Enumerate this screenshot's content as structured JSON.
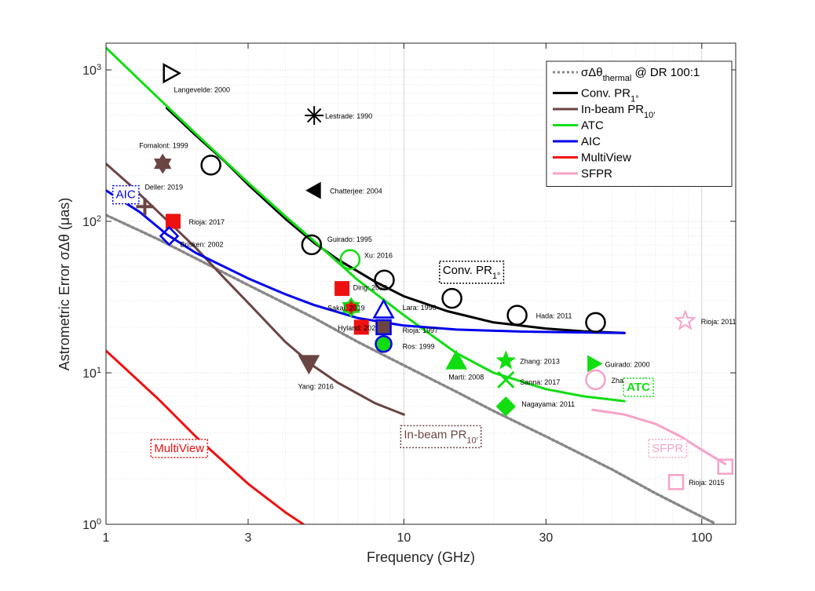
{
  "chart_data": {
    "type": "line",
    "xlabel": "Frequency (GHz)",
    "ylabel": "Astrometric Error σΔθ (μas)",
    "x_scale": "log",
    "y_scale": "log",
    "xlim": [
      1,
      130
    ],
    "ylim": [
      1,
      1500
    ],
    "grid": true,
    "minor_grid": true,
    "legend_position": "top-right",
    "x_ticks": [
      {
        "value": 1,
        "label": "1"
      },
      {
        "value": 3,
        "label": "3"
      },
      {
        "value": 10,
        "label": "10"
      },
      {
        "value": 30,
        "label": "30"
      },
      {
        "value": 100,
        "label": "100"
      }
    ],
    "y_ticks": [
      {
        "value": 1,
        "base": "10",
        "exp": "0"
      },
      {
        "value": 10,
        "base": "10",
        "exp": "1"
      },
      {
        "value": 100,
        "base": "10",
        "exp": "2"
      },
      {
        "value": 1000,
        "base": "10",
        "exp": "3"
      }
    ],
    "series": [
      {
        "key": "thermal",
        "legend": "σΔθ",
        "legend_sub": "thermal",
        "legend_suffix": " @ DR 100:1",
        "color": "#888888",
        "dash": "3,3",
        "points": [
          [
            1,
            110
          ],
          [
            1.5,
            76
          ],
          [
            2,
            57
          ],
          [
            3,
            38
          ],
          [
            5,
            23
          ],
          [
            7,
            16
          ],
          [
            10,
            11.2
          ],
          [
            15,
            7.5
          ],
          [
            20,
            5.6
          ],
          [
            30,
            3.8
          ],
          [
            50,
            2.3
          ],
          [
            70,
            1.6
          ],
          [
            100,
            1.12
          ],
          [
            110,
            1.02
          ]
        ]
      },
      {
        "key": "conv",
        "legend": "Conv. PR",
        "legend_sub": "1°",
        "color": "#000000",
        "points": [
          [
            1.6,
            560
          ],
          [
            2,
            370
          ],
          [
            2.5,
            250
          ],
          [
            3,
            175
          ],
          [
            4,
            104
          ],
          [
            5,
            72
          ],
          [
            6,
            56
          ],
          [
            8,
            40
          ],
          [
            10,
            32
          ],
          [
            14,
            25.5
          ],
          [
            20,
            21.5
          ],
          [
            30,
            19.6
          ],
          [
            40,
            18.8
          ],
          [
            55,
            18.3
          ]
        ]
      },
      {
        "key": "inbeam",
        "legend": "In-beam PR",
        "legend_sub": "10′",
        "color": "#6b4543",
        "points": [
          [
            1,
            240
          ],
          [
            1.2,
            175
          ],
          [
            1.5,
            115
          ],
          [
            2,
            67
          ],
          [
            2.5,
            42
          ],
          [
            3,
            29
          ],
          [
            4,
            16
          ],
          [
            5,
            11
          ],
          [
            6,
            8.6
          ],
          [
            8,
            6.3
          ],
          [
            10,
            5.3
          ]
        ]
      },
      {
        "key": "atc",
        "legend": "ATC",
        "color": "#11dd11",
        "points": [
          [
            1,
            1400
          ],
          [
            1.5,
            650
          ],
          [
            2,
            380
          ],
          [
            3,
            180
          ],
          [
            4,
            108
          ],
          [
            5,
            74
          ],
          [
            7,
            41
          ],
          [
            10,
            24
          ],
          [
            15,
            13.5
          ],
          [
            20,
            10
          ],
          [
            30,
            7.8
          ],
          [
            40,
            7
          ],
          [
            55,
            6.5
          ]
        ]
      },
      {
        "key": "aic",
        "legend": "AIC",
        "color": "#0000ee",
        "points": [
          [
            1,
            160
          ],
          [
            1.3,
            115
          ],
          [
            1.6,
            82
          ],
          [
            2,
            62
          ],
          [
            3,
            42
          ],
          [
            4,
            33
          ],
          [
            5,
            28
          ],
          [
            7,
            23
          ],
          [
            10,
            20.5
          ],
          [
            15,
            19.3
          ],
          [
            25,
            18.7
          ],
          [
            55,
            18.3
          ]
        ]
      },
      {
        "key": "multiview",
        "legend": "MultiView",
        "color": "#ee1111",
        "points": [
          [
            1,
            14
          ],
          [
            1.5,
            6.7
          ],
          [
            2,
            3.8
          ],
          [
            3,
            1.85
          ],
          [
            4,
            1.2
          ],
          [
            4.6,
            1.0
          ]
        ]
      },
      {
        "key": "sfpr",
        "legend": "SFPR",
        "color": "#f7a2c9",
        "points": [
          [
            43,
            5.7
          ],
          [
            55,
            5.3
          ],
          [
            70,
            4.6
          ],
          [
            85,
            3.8
          ],
          [
            100,
            3.1
          ],
          [
            120,
            2.5
          ]
        ]
      }
    ],
    "boxed_labels": [
      {
        "text": "AIC",
        "x": 1.08,
        "y": 142,
        "color": "#0000ee",
        "border": "#0000ee",
        "size": 15
      },
      {
        "text": "Conv. PR",
        "sub": "1°",
        "x": 13.5,
        "y": 45,
        "color": "#000000",
        "border": "#000000",
        "size": 15
      },
      {
        "text": "In-beam PR",
        "sub": "10′",
        "x": 10,
        "y": 3.7,
        "color": "#6b4543",
        "border": "#6b4543",
        "size": 15
      },
      {
        "text": "ATC",
        "x": 56,
        "y": 7.6,
        "color": "#11dd11",
        "border": "#11dd11",
        "size": 15,
        "bold": true
      },
      {
        "text": "MultiView",
        "x": 1.45,
        "y": 3.0,
        "color": "#ee1111",
        "border": "#ee1111",
        "size": 15
      },
      {
        "text": "SFPR",
        "x": 68,
        "y": 3.0,
        "color": "#f7a2c9",
        "border": "#f7a2c9",
        "size": 15
      }
    ],
    "measurements": [
      {
        "label": "Langevelde: 2000",
        "x": 1.65,
        "y": 950,
        "marker": "triangle-right-open",
        "color": "#000000",
        "size": 11,
        "dx": 4,
        "dy": 24
      },
      {
        "label": "Lestrade: 1990",
        "x": 5,
        "y": 500,
        "marker": "asterisk",
        "color": "#000000",
        "size": 12,
        "dx": 14,
        "dy": 4
      },
      {
        "label": "Fomalont: 1999",
        "x": 1.55,
        "y": 240,
        "marker": "hexagram",
        "color": "#6b4543",
        "size": 12,
        "dx": -30,
        "dy": -20
      },
      {
        "label": "Chatterjee: 2004",
        "x": 5,
        "y": 160,
        "marker": "triangle-left-filled",
        "color": "#000000",
        "size": 10,
        "dx": 20,
        "dy": 4
      },
      {
        "label": "Deller: 2019",
        "x": 1.35,
        "y": 125,
        "marker": "plus-bold",
        "color": "#6b4543",
        "size": 11,
        "dx": 0,
        "dy": -22
      },
      {
        "label": "Rioja: 2017",
        "x": 1.68,
        "y": 100,
        "marker": "square-filled",
        "color": "#ee1111",
        "size": 9,
        "dx": 20,
        "dy": 4
      },
      {
        "label": "Brisken: 2002",
        "x": 1.63,
        "y": 80,
        "marker": "diamond-open",
        "color": "#0000ee",
        "size": 11,
        "dx": 14,
        "dy": 14
      },
      {
        "label": "",
        "x": 2.25,
        "y": 235,
        "marker": "circle-open",
        "color": "#000000",
        "size": 12,
        "dx": 0,
        "dy": 0
      },
      {
        "label": "Guirado: 1995",
        "x": 4.9,
        "y": 70,
        "marker": "circle-open",
        "color": "#000000",
        "size": 12,
        "dx": 20,
        "dy": -4
      },
      {
        "label": "Xu: 2016",
        "x": 6.6,
        "y": 56,
        "marker": "circle-open",
        "color": "#11dd11",
        "size": 12,
        "dx": 18,
        "dy": -2
      },
      {
        "label": "",
        "x": 8.6,
        "y": 41,
        "marker": "circle-open",
        "color": "#000000",
        "size": 12,
        "dx": 0,
        "dy": 0
      },
      {
        "label": "Ding: 2020",
        "x": 6.2,
        "y": 36,
        "marker": "square-filled",
        "color": "#ee1111",
        "size": 9,
        "dx": 14,
        "dy": 2
      },
      {
        "label": "Sakai: 2019",
        "x": 6.65,
        "y": 27,
        "marker": "hexagram-sakai",
        "color": "#11dd11",
        "size": 11,
        "dx": -30,
        "dy": 4
      },
      {
        "label": "Lara: 1996",
        "x": 8.55,
        "y": 26,
        "marker": "triangle-up-open",
        "color": "#0000ee",
        "size": 12,
        "dx": 24,
        "dy": 0
      },
      {
        "label": "Hyland: 2022",
        "x": 7.2,
        "y": 20,
        "marker": "square-filled",
        "color": "#ee1111",
        "size": 9,
        "dx": -30,
        "dy": 4
      },
      {
        "label": "Rioja: 1997",
        "x": 8.55,
        "y": 20,
        "marker": "square-filled-blue-edge",
        "color": "#6b4543",
        "size": 9,
        "dx": 24,
        "dy": 7
      },
      {
        "label": "Ros: 1999",
        "x": 8.55,
        "y": 15.5,
        "marker": "circle-filled-blue-edge",
        "color": "#11dd11",
        "size": 10,
        "dx": 24,
        "dy": 6
      },
      {
        "label": "",
        "x": 14.5,
        "y": 31,
        "marker": "circle-open",
        "color": "#000000",
        "size": 12,
        "dx": 0,
        "dy": 0
      },
      {
        "label": "Hada: 2011",
        "x": 24,
        "y": 24,
        "marker": "circle-open",
        "color": "#000000",
        "size": 12,
        "dx": 24,
        "dy": 4
      },
      {
        "label": "",
        "x": 44,
        "y": 21.5,
        "marker": "circle-open",
        "color": "#000000",
        "size": 12,
        "dx": 0,
        "dy": 0
      },
      {
        "label": "Rioja: 2011",
        "x": 88,
        "y": 22,
        "marker": "pentagram-open",
        "color": "#f7a2c9",
        "size": 12,
        "dx": 20,
        "dy": 4
      },
      {
        "label": "Marti: 2008",
        "x": 15,
        "y": 12,
        "marker": "triangle-up-filled",
        "color": "#11dd11",
        "size": 13,
        "dx": -10,
        "dy": 24
      },
      {
        "label": "Zhang: 2013",
        "x": 22,
        "y": 12,
        "marker": "pentagram-filled",
        "color": "#11dd11",
        "size": 12,
        "dx": 18,
        "dy": 4
      },
      {
        "label": "Sanna: 2017",
        "x": 22,
        "y": 9,
        "marker": "x-cross",
        "color": "#11dd11",
        "size": 10,
        "dx": 18,
        "dy": 6
      },
      {
        "label": "Guirado: 2000",
        "x": 43.5,
        "y": 11.5,
        "marker": "triangle-right-filled",
        "color": "#11dd11",
        "size": 10,
        "dx": 14,
        "dy": 4
      },
      {
        "label": "Zhao: 2019",
        "x": 44,
        "y": 9,
        "marker": "circle-open",
        "color": "#f7a2c9",
        "size": 12,
        "dx": 20,
        "dy": 4
      },
      {
        "label": "Nagayama: 2011",
        "x": 22,
        "y": 6,
        "marker": "diamond-filled",
        "color": "#11dd11",
        "size": 12,
        "dx": 20,
        "dy": 0
      },
      {
        "label": "Yang: 2016",
        "x": 4.8,
        "y": 11.5,
        "marker": "triangle-down-filled",
        "color": "#6b4543",
        "size": 13,
        "dx": -14,
        "dy": 32
      },
      {
        "label": "Rioja: 2015",
        "x": 82,
        "y": 1.9,
        "marker": "square-open",
        "color": "#f7a2c9",
        "size": 9,
        "dx": 16,
        "dy": 4
      },
      {
        "label": "",
        "x": 120,
        "y": 2.4,
        "marker": "square-open",
        "color": "#f7a2c9",
        "size": 9,
        "dx": 0,
        "dy": 0
      }
    ]
  }
}
